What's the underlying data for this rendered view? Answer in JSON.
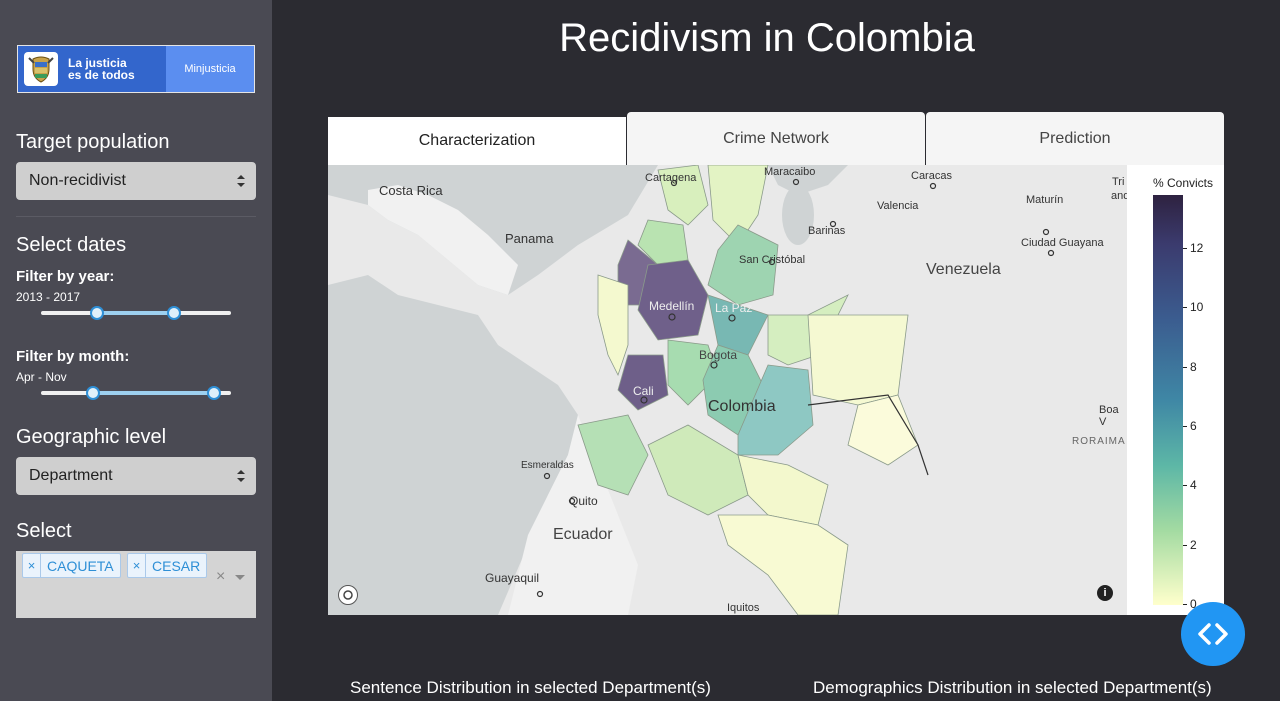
{
  "sidebar": {
    "logo": {
      "text_line1": "La justicia",
      "text_line2": "es de todos",
      "brand": "Minjusticia"
    },
    "target_population": {
      "title": "Target population",
      "selected": "Non-recidivist"
    },
    "dates": {
      "title": "Select dates",
      "year": {
        "label": "Filter by year:",
        "value": "2013 - 2017",
        "min": 2010,
        "max": 2019,
        "from": 2013,
        "to": 2017
      },
      "month": {
        "label": "Filter by month:",
        "value": "Apr - Nov"
      }
    },
    "geographic_level": {
      "title": "Geographic level",
      "selected": "Department"
    },
    "select": {
      "title": "Select",
      "tags": [
        "CAQUETA",
        "CESAR"
      ]
    }
  },
  "main": {
    "title": "Recidivism in Colombia",
    "tabs": [
      {
        "label": "Characterization",
        "active": true
      },
      {
        "label": "Crime Network",
        "active": false
      },
      {
        "label": "Prediction",
        "active": false
      }
    ],
    "map": {
      "place_labels": [
        "Costa Rica",
        "Panama",
        "Cartagena",
        "Maracaibo",
        "Caracas",
        "Valencia",
        "Barinas",
        "Maturín",
        "Ciudad Guayana",
        "San Cristóbal",
        "Venezuela",
        "Medellín",
        "La Paz",
        "Bogota",
        "Cali",
        "Colombia",
        "Esmeraldas",
        "Quito",
        "Ecuador",
        "Guayaquil",
        "Iquitos",
        "Boa V",
        "RORAIMA",
        "Tri",
        "and"
      ]
    },
    "legend": {
      "title": "% Convicts",
      "ticks": [
        "12",
        "10",
        "8",
        "6",
        "4",
        "2",
        "0"
      ],
      "max_value": 13.8
    },
    "subtitles": {
      "sentence": "Sentence Distribution in selected Department(s)",
      "demographics": "Demographics Distribution in selected Department(s)"
    }
  },
  "colors": {
    "sidebar_bg": "#4a4a53",
    "page_bg": "#2b2b31",
    "accent": "#2196f3",
    "brand_blue": "#3366cc"
  }
}
